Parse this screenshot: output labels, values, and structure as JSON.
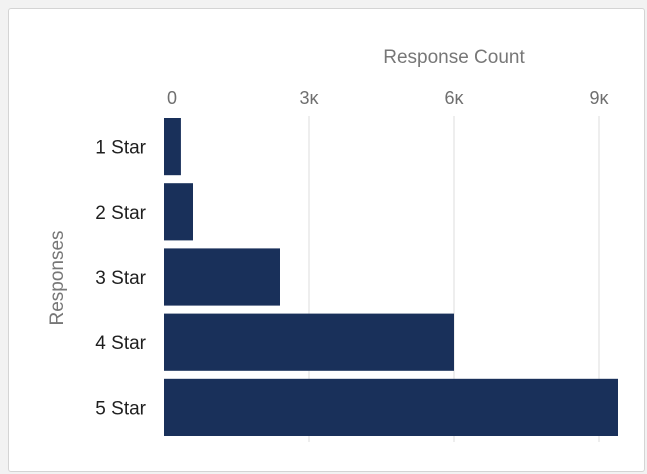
{
  "chart_data": {
    "type": "bar",
    "orientation": "horizontal",
    "title": "",
    "xlabel": "Response Count",
    "ylabel": "Responses",
    "xlim": [
      0,
      9500
    ],
    "x_ticks": [
      {
        "value": 0,
        "label": "0"
      },
      {
        "value": 3000,
        "label": "3κ"
      },
      {
        "value": 6000,
        "label": "6κ"
      },
      {
        "value": 9000,
        "label": "9κ"
      }
    ],
    "categories": [
      "1 Star",
      "2 Star",
      "3 Star",
      "4 Star",
      "5 Star"
    ],
    "values": [
      350,
      600,
      2400,
      6000,
      9550
    ],
    "bar_color": "#19305a",
    "grid": true,
    "legend": "none"
  }
}
